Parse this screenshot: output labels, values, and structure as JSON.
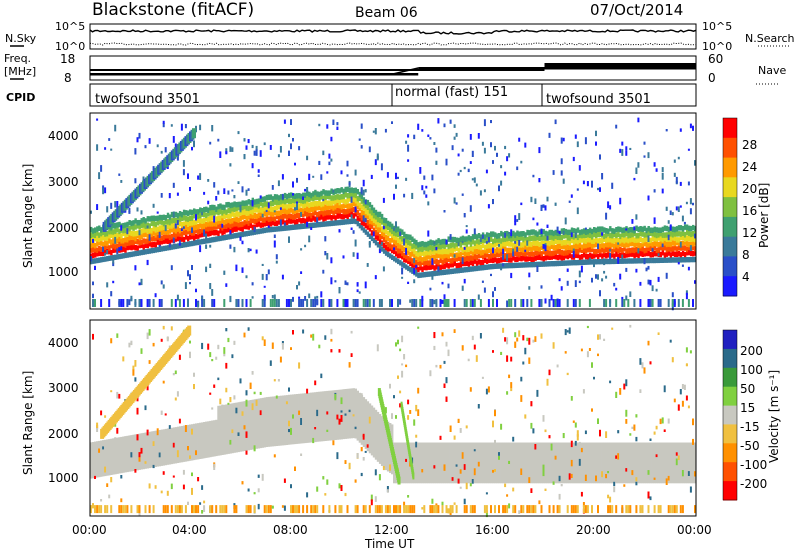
{
  "header": {
    "station": "Blackstone (fitACF)",
    "beam": "Beam 06",
    "date": "07/Oct/2014"
  },
  "noise_panel": {
    "left_label": "N.Sky",
    "right_label": "N.Search",
    "left_ticks": [
      "10^5",
      "10^0"
    ],
    "right_ticks": [
      "10^5",
      "10^0"
    ]
  },
  "freq_panel": {
    "left_label_1": "Freq.",
    "left_label_2": "[MHz]",
    "left_ticks": [
      "18",
      "8"
    ],
    "right_label": "Nave",
    "right_ticks": [
      "60",
      "0"
    ],
    "freq_mhz": [
      {
        "from": "00:00",
        "to": "12:00",
        "value": 10.5
      },
      {
        "from": "12:00",
        "to": "13:00",
        "value": 10.5
      },
      {
        "from": "13:00",
        "to": "24:00",
        "value": 13.0
      }
    ],
    "nave": [
      {
        "from": "00:00",
        "to": "18:00",
        "value": 25
      },
      {
        "from": "18:00",
        "to": "24:00",
        "value": 40
      }
    ]
  },
  "cpid_panel": {
    "label": "CPID",
    "modes": [
      {
        "name": "twofsound 3501",
        "start_hour": 0
      },
      {
        "name": "normal (fast) 151",
        "start_hour": 12.1
      },
      {
        "name": "twofsound 3501",
        "start_hour": 18.1
      }
    ]
  },
  "x_axis": {
    "label": "Time UT",
    "ticks": [
      "00:00",
      "04:00",
      "08:00",
      "12:00",
      "16:00",
      "20:00",
      "00:00"
    ]
  },
  "power_panel": {
    "ylabel": "Slant Range [km]",
    "yticks": [
      "4000",
      "3000",
      "2000",
      "1000"
    ],
    "colorbar_label": "Power [dB]",
    "colorbar_ticks": [
      "28",
      "24",
      "20",
      "16",
      "12",
      "8",
      "4"
    ]
  },
  "velocity_panel": {
    "ylabel": "Slant Range [km]",
    "yticks": [
      "4000",
      "3000",
      "2000",
      "1000"
    ],
    "colorbar_label": "Velocity [m s⁻¹]",
    "colorbar_ticks": [
      "200",
      "100",
      "50",
      "15",
      "-15",
      "-50",
      "-100",
      "-200"
    ]
  },
  "colors": {
    "power_scale": [
      "#1a1aff",
      "#2a4fc8",
      "#3a7a9a",
      "#3fa070",
      "#7fc040",
      "#e8d820",
      "#ff9a00",
      "#ff5000",
      "#ff0000"
    ],
    "velocity_scale": [
      "#2020c0",
      "#2a6a8a",
      "#3a9a3a",
      "#80d040",
      "#c8c8c0",
      "#f0c040",
      "#ff9000",
      "#ff5000",
      "#ff0000"
    ]
  },
  "chart_data": [
    {
      "type": "heatmap",
      "title": "Power",
      "xlabel": "Time UT",
      "ylabel": "Slant Range [km]",
      "xlim": [
        "00:00",
        "24:00"
      ],
      "ylim": [
        180,
        4500
      ],
      "colorbar": {
        "label": "Power [dB]",
        "range": [
          0,
          30
        ]
      },
      "features": [
        {
          "name": "main band",
          "points": [
            {
              "hour": 0,
              "range_km": 1200,
              "db": 28
            },
            {
              "hour": 4,
              "range_km": 1600,
              "db": 24
            },
            {
              "hour": 7,
              "range_km": 1900,
              "db": 22
            },
            {
              "hour": 10.5,
              "range_km": 2100,
              "db": 18
            },
            {
              "hour": 11.7,
              "range_km": 1400,
              "db": 28
            },
            {
              "hour": 13,
              "range_km": 900,
              "db": 28
            },
            {
              "hour": 16,
              "range_km": 1100,
              "db": 28
            },
            {
              "hour": 20,
              "range_km": 1200,
              "db": 26
            },
            {
              "hour": 24,
              "range_km": 1250,
              "db": 26
            }
          ]
        }
      ]
    },
    {
      "type": "heatmap",
      "title": "Velocity",
      "xlabel": "Time UT",
      "ylabel": "Slant Range [km]",
      "xlim": [
        "00:00",
        "24:00"
      ],
      "ylim": [
        180,
        4500
      ],
      "colorbar": {
        "label": "Velocity [m s⁻¹]",
        "range": [
          -200,
          200
        ]
      },
      "features": [
        {
          "name": "ground scatter band",
          "velocity_ms": 0
        },
        {
          "name": "negative velocity streaks",
          "velocity_ms": -60
        },
        {
          "name": "positive velocity near 12:00",
          "velocity_ms": 60
        }
      ]
    }
  ]
}
